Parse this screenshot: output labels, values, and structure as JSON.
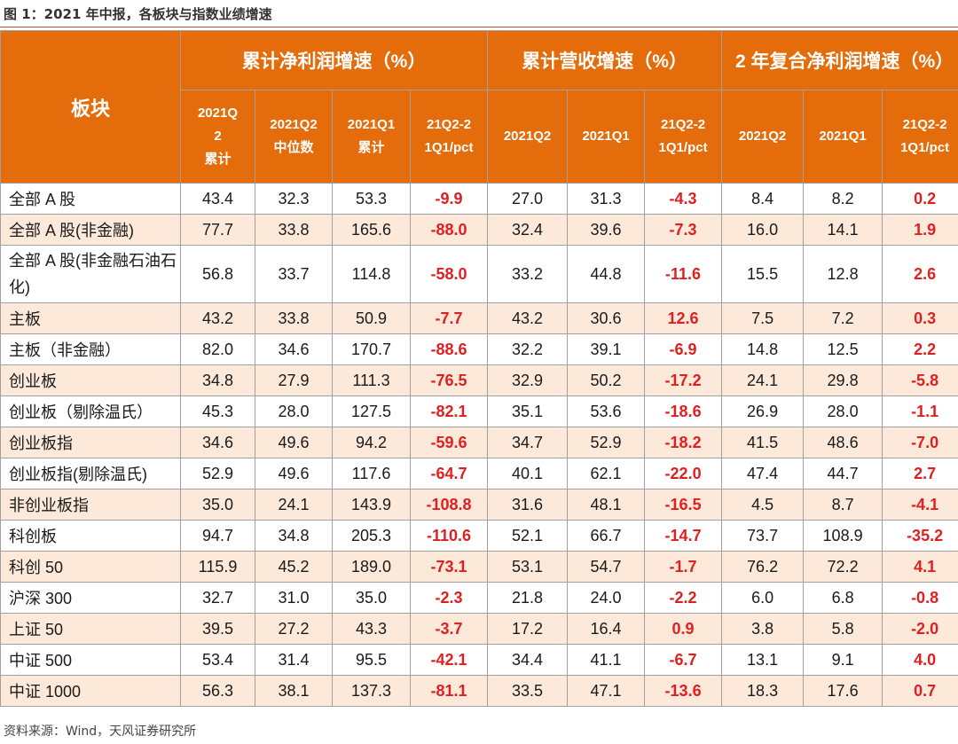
{
  "caption": "图 1：2021 年中报，各板块与指数业绩增速",
  "source": "资料来源：Wind，天风证券研究所",
  "header": {
    "sector": "板块",
    "groups": [
      "累计净利润增速（%）",
      "累计营收增速（%）",
      "2 年复合净利润增速（%）"
    ],
    "sub": [
      [
        "2021Q",
        "2",
        "累计"
      ],
      [
        "2021Q2",
        "中位数"
      ],
      [
        "2021Q1",
        "累计"
      ],
      [
        "21Q2-2",
        "1Q1/pct"
      ],
      [
        "2021Q2"
      ],
      [
        "2021Q1"
      ],
      [
        "21Q2-2",
        "1Q1/pct"
      ],
      [
        "2021Q2"
      ],
      [
        "2021Q1"
      ],
      [
        "21Q2-2",
        "1Q1/pct"
      ]
    ]
  },
  "rows": [
    [
      "全部 A 股",
      "43.4",
      "32.3",
      "53.3",
      "-9.9",
      "27.0",
      "31.3",
      "-4.3",
      "8.4",
      "8.2",
      "0.2"
    ],
    [
      "全部 A 股(非金融)",
      "77.7",
      "33.8",
      "165.6",
      "-88.0",
      "32.4",
      "39.6",
      "-7.3",
      "16.0",
      "14.1",
      "1.9"
    ],
    [
      "全部 A 股(非金融石油石化)",
      "56.8",
      "33.7",
      "114.8",
      "-58.0",
      "33.2",
      "44.8",
      "-11.6",
      "15.5",
      "12.8",
      "2.6"
    ],
    [
      "主板",
      "43.2",
      "33.8",
      "50.9",
      "-7.7",
      "43.2",
      "30.6",
      "12.6",
      "7.5",
      "7.2",
      "0.3"
    ],
    [
      "主板（非金融）",
      "82.0",
      "34.6",
      "170.7",
      "-88.6",
      "32.2",
      "39.1",
      "-6.9",
      "14.8",
      "12.5",
      "2.2"
    ],
    [
      "创业板",
      "34.8",
      "27.9",
      "111.3",
      "-76.5",
      "32.9",
      "50.2",
      "-17.2",
      "24.1",
      "29.8",
      "-5.8"
    ],
    [
      "创业板（剔除温氏）",
      "45.3",
      "28.0",
      "127.5",
      "-82.1",
      "35.1",
      "53.6",
      "-18.6",
      "26.9",
      "28.0",
      "-1.1"
    ],
    [
      "创业板指",
      "34.6",
      "49.6",
      "94.2",
      "-59.6",
      "34.7",
      "52.9",
      "-18.2",
      "41.5",
      "48.6",
      "-7.0"
    ],
    [
      "创业板指(剔除温氏)",
      "52.9",
      "49.6",
      "117.6",
      "-64.7",
      "40.1",
      "62.1",
      "-22.0",
      "47.4",
      "44.7",
      "2.7"
    ],
    [
      "非创业板指",
      "35.0",
      "24.1",
      "143.9",
      "-108.8",
      "31.6",
      "48.1",
      "-16.5",
      "4.5",
      "8.7",
      "-4.1"
    ],
    [
      "科创板",
      "94.7",
      "34.8",
      "205.3",
      "-110.6",
      "52.1",
      "66.7",
      "-14.7",
      "73.7",
      "108.9",
      "-35.2"
    ],
    [
      "科创 50",
      "115.9",
      "45.2",
      "189.0",
      "-73.1",
      "53.1",
      "54.7",
      "-1.7",
      "76.2",
      "72.2",
      "4.1"
    ],
    [
      "沪深 300",
      "32.7",
      "31.0",
      "35.0",
      "-2.3",
      "21.8",
      "24.0",
      "-2.2",
      "6.0",
      "6.8",
      "-0.8"
    ],
    [
      "上证 50",
      "39.5",
      "27.2",
      "43.3",
      "-3.7",
      "17.2",
      "16.4",
      "0.9",
      "3.8",
      "5.8",
      "-2.0"
    ],
    [
      "中证 500",
      "53.4",
      "31.4",
      "95.5",
      "-42.1",
      "34.4",
      "41.1",
      "-6.7",
      "13.1",
      "9.1",
      "4.0"
    ],
    [
      "中证 1000",
      "56.3",
      "38.1",
      "137.3",
      "-81.1",
      "33.5",
      "47.1",
      "-13.6",
      "18.3",
      "17.6",
      "0.7"
    ]
  ],
  "colors": {
    "header_bg": "#e46c0a",
    "row_alt_bg": "#fde9d9",
    "delta_text": "#e02020"
  }
}
